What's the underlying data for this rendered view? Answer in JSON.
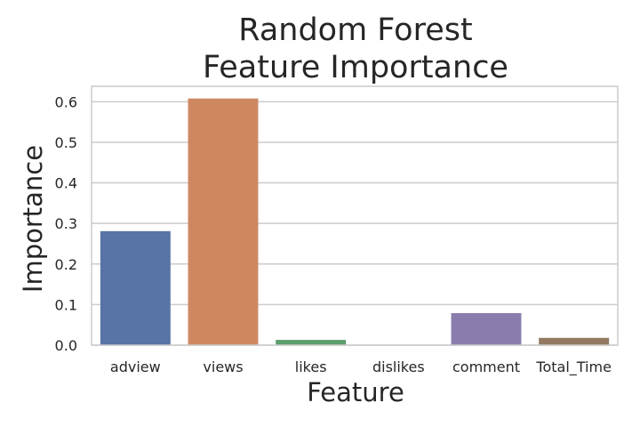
{
  "chart_data": {
    "type": "bar",
    "title_lines": [
      "Random Forest",
      "Feature Importance"
    ],
    "xlabel": "Feature",
    "ylabel": "Importance",
    "categories": [
      "adview",
      "views",
      "likes",
      "dislikes",
      "comment",
      "Total_Time"
    ],
    "values": [
      0.281,
      0.608,
      0.013,
      0.001,
      0.079,
      0.018
    ],
    "colors": [
      "#5874a6",
      "#cd8862",
      "#5e9e6e",
      "#c44e52",
      "#8a7dad",
      "#937a62"
    ],
    "yticks": [
      0.0,
      0.1,
      0.2,
      0.3,
      0.4,
      0.5,
      0.6
    ],
    "ytick_labels": [
      "0.0",
      "0.1",
      "0.2",
      "0.3",
      "0.4",
      "0.5",
      "0.6"
    ],
    "ylim": [
      0,
      0.638
    ],
    "grid": true,
    "style": "whitegrid"
  }
}
